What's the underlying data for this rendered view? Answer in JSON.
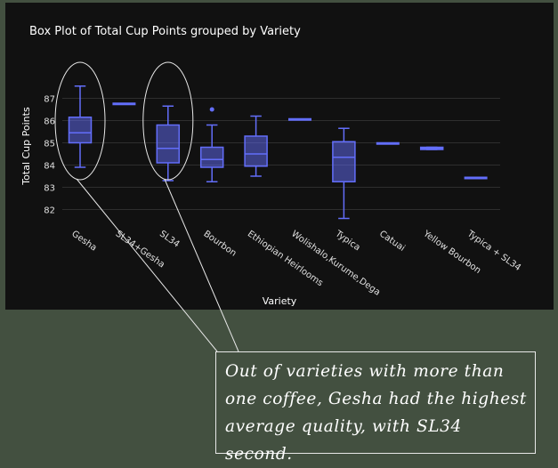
{
  "chart_data": {
    "type": "box",
    "title": "Box Plot of Total Cup Points grouped by Variety",
    "xlabel": "Variety",
    "ylabel": "Total Cup Points",
    "ylim": [
      81.5,
      87.9
    ],
    "yticks": [
      82,
      83,
      84,
      85,
      86,
      87
    ],
    "grid": true,
    "categories": [
      "Gesha",
      "SL34+Gesha",
      "SL34",
      "Bourbon",
      "Ethiopian Heirlooms",
      "Wolishalo,Kurume,Dega",
      "Typica",
      "Catuai",
      "Yellow Bourbon",
      "Typica + SL34"
    ],
    "boxes": [
      {
        "name": "Gesha",
        "min": 83.9,
        "q1": 85.0,
        "median": 85.45,
        "q3": 86.15,
        "max": 87.55,
        "outliers": []
      },
      {
        "name": "SL34+Gesha",
        "min": 86.75,
        "q1": 86.75,
        "median": 86.75,
        "q3": 86.75,
        "max": 86.75,
        "outliers": []
      },
      {
        "name": "SL34",
        "min": 83.3,
        "q1": 84.1,
        "median": 84.75,
        "q3": 85.8,
        "max": 86.65,
        "outliers": []
      },
      {
        "name": "Bourbon",
        "min": 83.25,
        "q1": 83.9,
        "median": 84.25,
        "q3": 84.8,
        "max": 85.8,
        "outliers": [
          86.5
        ]
      },
      {
        "name": "Ethiopian Heirlooms",
        "min": 83.5,
        "q1": 83.95,
        "median": 84.5,
        "q3": 85.3,
        "max": 86.2,
        "outliers": []
      },
      {
        "name": "Wolishalo,Kurume,Dega",
        "min": 86.05,
        "q1": 86.05,
        "median": 86.05,
        "q3": 86.05,
        "max": 86.05,
        "outliers": []
      },
      {
        "name": "Typica",
        "min": 81.6,
        "q1": 83.25,
        "median": 84.35,
        "q3": 85.05,
        "max": 85.65,
        "outliers": []
      },
      {
        "name": "Catuai",
        "min": 84.97,
        "q1": 84.97,
        "median": 84.97,
        "q3": 84.97,
        "max": 84.97,
        "outliers": []
      },
      {
        "name": "Yellow Bourbon",
        "min": 84.7,
        "q1": 84.7,
        "median": 84.75,
        "q3": 84.8,
        "max": 84.8,
        "outliers": []
      },
      {
        "name": "Typica + SL34",
        "min": 83.42,
        "q1": 83.42,
        "median": 83.42,
        "q3": 83.42,
        "max": 83.42,
        "outliers": []
      }
    ],
    "highlighted": [
      "Gesha",
      "SL34"
    ]
  },
  "annotation": {
    "text": "Out of varieties with more than one coffee, Gesha had the highest average quality, with SL34 second."
  },
  "colors": {
    "box": "#636efa",
    "plot_bg": "#111111",
    "page_bg": "#435040",
    "grid": "#2e2e2e",
    "annotation": "#e8e8e8"
  }
}
